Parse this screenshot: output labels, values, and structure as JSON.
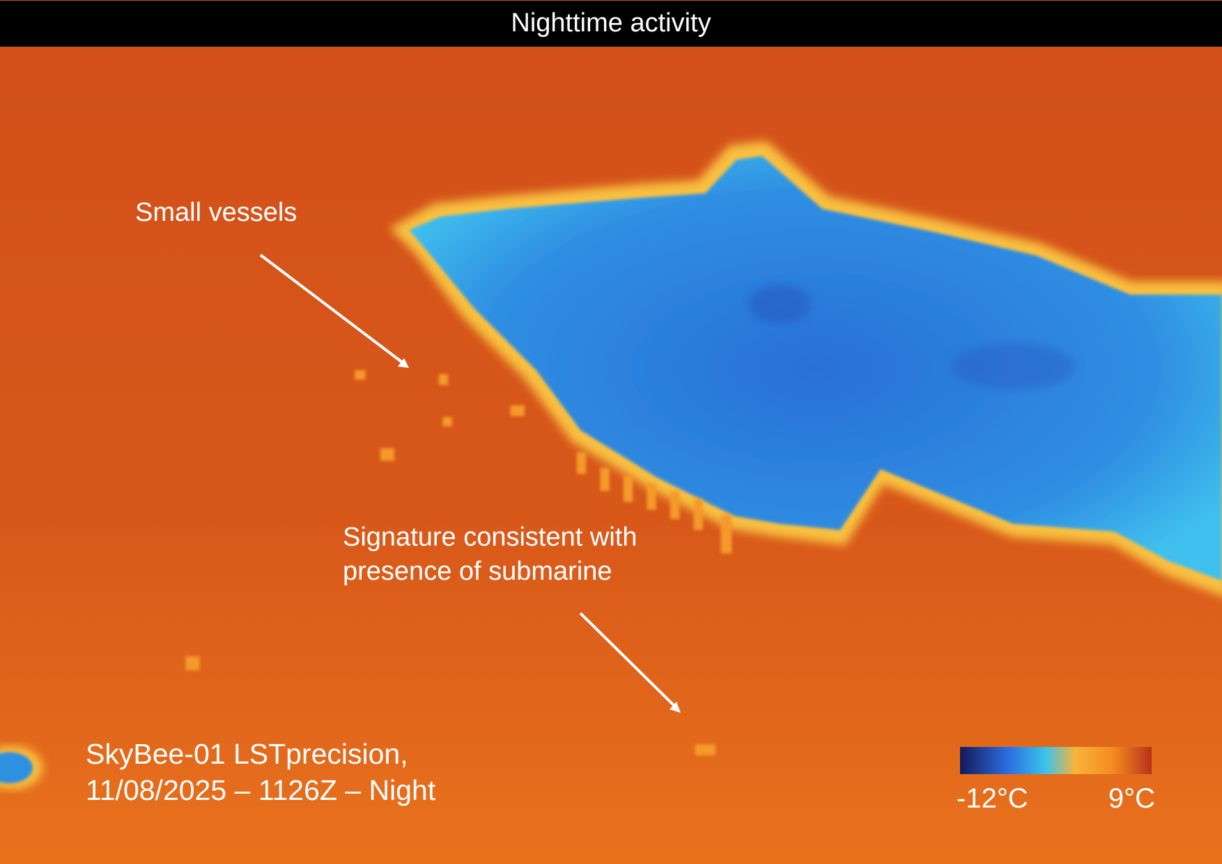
{
  "header": {
    "title": "Nighttime activity"
  },
  "annotations": [
    {
      "lines": [
        "Small vessels"
      ]
    },
    {
      "lines": [
        "Signature consistent with",
        "presence of submarine"
      ]
    }
  ],
  "caption": {
    "lines": [
      "SkyBee-01 LSTprecision,",
      "11/08/2025 – 1126Z – Night"
    ]
  },
  "colorbar": {
    "min_label": "-12°C",
    "max_label": "9°C"
  }
}
